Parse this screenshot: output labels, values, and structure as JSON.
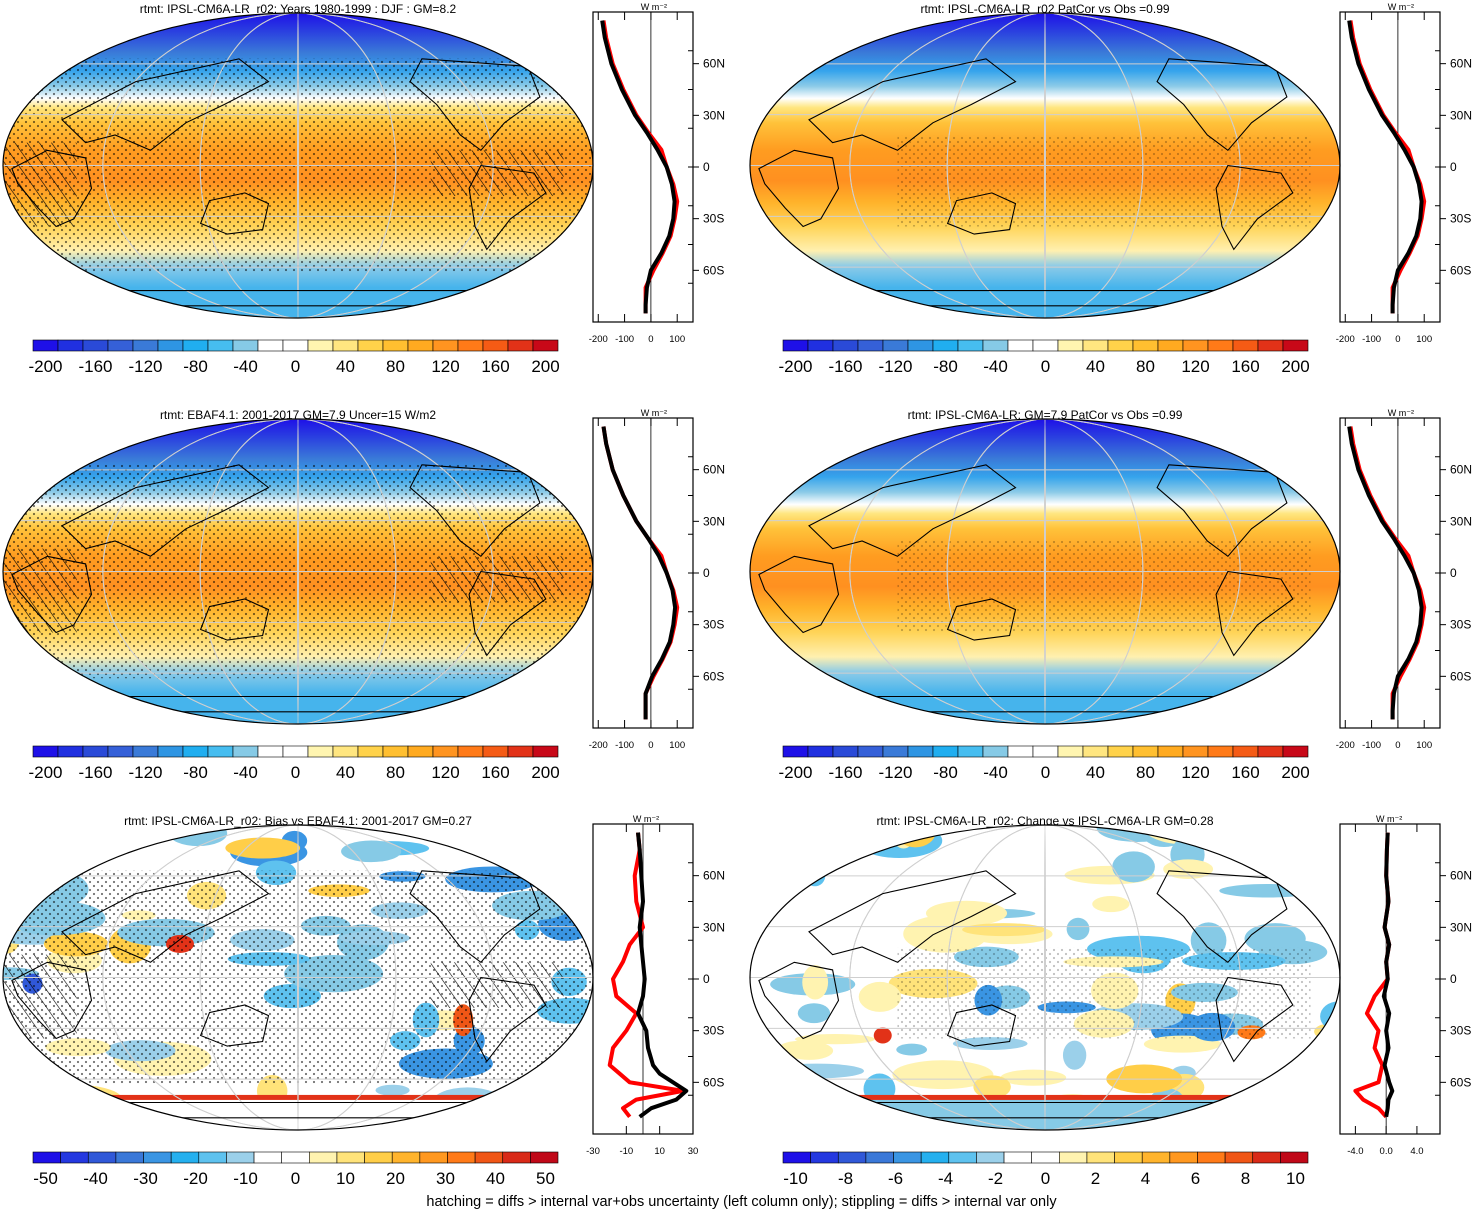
{
  "footnote": "hatching = diffs > internal var+obs uncertainty (left column only); stippling = diffs > internal var only",
  "colors": {
    "main_scale": [
      "#1e10e8",
      "#2030e0",
      "#2a4ad8",
      "#3560d8",
      "#3a7ad8",
      "#2e95e3",
      "#20aef0",
      "#46bdf0",
      "#86cae6",
      "#ffffff",
      "#ffffff",
      "#fff5b0",
      "#ffe680",
      "#ffd24a",
      "#ffbf30",
      "#ffaa20",
      "#ff9420",
      "#ff7a18",
      "#f55b15",
      "#e23218",
      "#c80818"
    ],
    "diff_scale": [
      "#1e10e8",
      "#2438e0",
      "#3058d8",
      "#3a78d8",
      "#3a95e3",
      "#25b0ef",
      "#5ec2ef",
      "#9bd0ea",
      "#ffffff",
      "#ffffff",
      "#fff3b0",
      "#ffe37a",
      "#ffce48",
      "#ffb42d",
      "#ff9820",
      "#ff7a18",
      "#f05616",
      "#d92a18",
      "#c00818"
    ],
    "model_line": "#000000",
    "obs_line": "#ff0000",
    "alt_line": "#0000ff"
  },
  "zonal_lat_labels": [
    "60N",
    "30N",
    "0",
    "30S",
    "60S"
  ],
  "zonal_unit": "W m⁻²",
  "chart_data": [
    {
      "type": "heatmap",
      "panel": "a",
      "title": "rtmt: IPSL-CM6A-LR_r02: Years 1980-1999 : DJF : GM=8.2",
      "colorbar_ticks": [
        "-200",
        "-160",
        "-120",
        "-80",
        "-40",
        "0",
        "40",
        "80",
        "120",
        "160",
        "200"
      ],
      "colorbar_range": [
        -210,
        210
      ],
      "zonal_ticks": [
        "-200",
        "-100",
        "0",
        "100"
      ],
      "zonal_xlim": [
        -220,
        160
      ],
      "zonal_mean": {
        "lat": [
          85,
          75,
          60,
          45,
          30,
          20,
          10,
          0,
          -10,
          -20,
          -30,
          -40,
          -50,
          -60,
          -70,
          -80,
          -85
        ],
        "model": [
          -185,
          -175,
          -150,
          -110,
          -60,
          -15,
          25,
          60,
          80,
          90,
          85,
          70,
          40,
          0,
          -15,
          -20,
          -20
        ],
        "obs": [
          -180,
          -170,
          -145,
          -105,
          -55,
          -10,
          40,
          60,
          85,
          100,
          90,
          75,
          45,
          10,
          -20,
          -20,
          -20
        ]
      }
    },
    {
      "type": "heatmap",
      "panel": "b",
      "title": "rtmt: IPSL-CM6A-LR_r02 PatCor vs Obs =0.99",
      "colorbar_ticks": [
        "-200",
        "-160",
        "-120",
        "-80",
        "-40",
        "0",
        "40",
        "80",
        "120",
        "160",
        "200"
      ],
      "colorbar_range": [
        -210,
        210
      ],
      "zonal_ticks": [
        "-200",
        "-100",
        "0",
        "100"
      ],
      "zonal_xlim": [
        -220,
        160
      ],
      "zonal_mean": {
        "lat": [
          85,
          75,
          60,
          45,
          30,
          20,
          10,
          0,
          -10,
          -20,
          -30,
          -40,
          -50,
          -60,
          -70,
          -80,
          -85
        ],
        "model": [
          -185,
          -175,
          -150,
          -110,
          -60,
          -15,
          25,
          60,
          80,
          90,
          85,
          70,
          40,
          0,
          -15,
          -20,
          -20
        ],
        "obs": [
          -180,
          -170,
          -145,
          -105,
          -55,
          -10,
          40,
          60,
          85,
          100,
          90,
          75,
          45,
          10,
          -20,
          -20,
          -20
        ]
      }
    },
    {
      "type": "heatmap",
      "panel": "c",
      "title": "rtmt: EBAF4.1: 2001-2017 GM=7.9 Uncer=15 W/m2",
      "colorbar_ticks": [
        "-200",
        "-160",
        "-120",
        "-80",
        "-40",
        "0",
        "40",
        "80",
        "120",
        "160",
        "200"
      ],
      "colorbar_range": [
        -210,
        210
      ],
      "zonal_ticks": [
        "-200",
        "-100",
        "0",
        "100"
      ],
      "zonal_xlim": [
        -220,
        160
      ],
      "zonal_mean": {
        "lat": [
          85,
          75,
          60,
          45,
          30,
          20,
          10,
          0,
          -10,
          -20,
          -30,
          -40,
          -50,
          -60,
          -70,
          -80,
          -85
        ],
        "model": [
          -180,
          -170,
          -145,
          -105,
          -55,
          -10,
          30,
          60,
          82,
          92,
          85,
          72,
          42,
          5,
          -20,
          -20,
          -20
        ],
        "obs": [
          -180,
          -170,
          -145,
          -105,
          -55,
          -10,
          40,
          60,
          85,
          100,
          90,
          75,
          45,
          10,
          -20,
          -20,
          -20
        ]
      }
    },
    {
      "type": "heatmap",
      "panel": "d",
      "title": "rtmt: IPSL-CM6A-LR: GM=7.9 PatCor vs Obs =0.99",
      "colorbar_ticks": [
        "-200",
        "-160",
        "-120",
        "-80",
        "-40",
        "0",
        "40",
        "80",
        "120",
        "160",
        "200"
      ],
      "colorbar_range": [
        -210,
        210
      ],
      "zonal_ticks": [
        "-200",
        "-100",
        "0",
        "100"
      ],
      "zonal_xlim": [
        -220,
        160
      ],
      "zonal_mean": {
        "lat": [
          85,
          75,
          60,
          45,
          30,
          20,
          10,
          0,
          -10,
          -20,
          -30,
          -40,
          -50,
          -60,
          -70,
          -80,
          -85
        ],
        "model": [
          -185,
          -175,
          -150,
          -110,
          -60,
          -15,
          25,
          60,
          80,
          90,
          85,
          70,
          40,
          0,
          -15,
          -20,
          -20
        ],
        "obs": [
          -180,
          -170,
          -145,
          -105,
          -55,
          -10,
          40,
          60,
          85,
          100,
          90,
          75,
          45,
          10,
          -20,
          -20,
          -20
        ]
      }
    },
    {
      "type": "heatmap",
      "panel": "e",
      "title": "rtmt: IPSL-CM6A-LR_r02: Bias vs EBAF4.1: 2001-2017 GM=0.27",
      "colorbar_ticks": [
        "-50",
        "-40",
        "-30",
        "-20",
        "-10",
        "0",
        "10",
        "20",
        "30",
        "40",
        "50"
      ],
      "colorbar_range": [
        -52.5,
        52.5
      ],
      "zonal_ticks": [
        "-30",
        "-10",
        "10",
        "30"
      ],
      "zonal_xlim": [
        -30,
        30
      ],
      "zonal_mean": {
        "lat": [
          85,
          75,
          60,
          45,
          30,
          20,
          10,
          0,
          -10,
          -20,
          -30,
          -40,
          -50,
          -55,
          -60,
          -65,
          -70,
          -75,
          -80
        ],
        "model": [
          -3,
          -2,
          -1,
          0,
          -2,
          -1,
          0,
          1,
          0,
          -3,
          2,
          3,
          6,
          10,
          18,
          26,
          20,
          5,
          -2
        ],
        "obs": [
          -3,
          -2,
          -5,
          -4,
          0,
          -8,
          -12,
          -18,
          -16,
          -4,
          -10,
          -18,
          -20,
          -14,
          -8,
          24,
          -4,
          -12,
          -8
        ]
      }
    },
    {
      "type": "heatmap",
      "panel": "f",
      "title": "rtmt: IPSL-CM6A-LR_r02: Change vs IPSL-CM6A-LR GM=0.28",
      "colorbar_ticks": [
        "-10",
        "-8",
        "-6",
        "-4",
        "-2",
        "0",
        "2",
        "4",
        "6",
        "8",
        "10"
      ],
      "colorbar_range": [
        -10.5,
        10.5
      ],
      "zonal_ticks": [
        "-4.0",
        "0.0",
        "4.0"
      ],
      "zonal_xlim": [
        -6,
        7
      ],
      "zonal_mean": {
        "lat": [
          85,
          75,
          60,
          45,
          30,
          20,
          10,
          0,
          -10,
          -20,
          -30,
          -40,
          -50,
          -60,
          -65,
          -70,
          -75,
          -80
        ],
        "model": [
          0.2,
          0.1,
          0.0,
          0.3,
          -0.2,
          0.4,
          0.0,
          0.2,
          -0.3,
          0.4,
          0.0,
          0.3,
          -0.2,
          0.4,
          0.8,
          0.3,
          0.2,
          0.0
        ],
        "obs": [
          0.2,
          0.1,
          0.0,
          0.3,
          -0.2,
          0.4,
          0.0,
          0.2,
          -1.5,
          -2.5,
          -1.0,
          -1.5,
          -0.5,
          -1.0,
          -4.0,
          -3.0,
          -1.0,
          0.0
        ]
      }
    }
  ]
}
